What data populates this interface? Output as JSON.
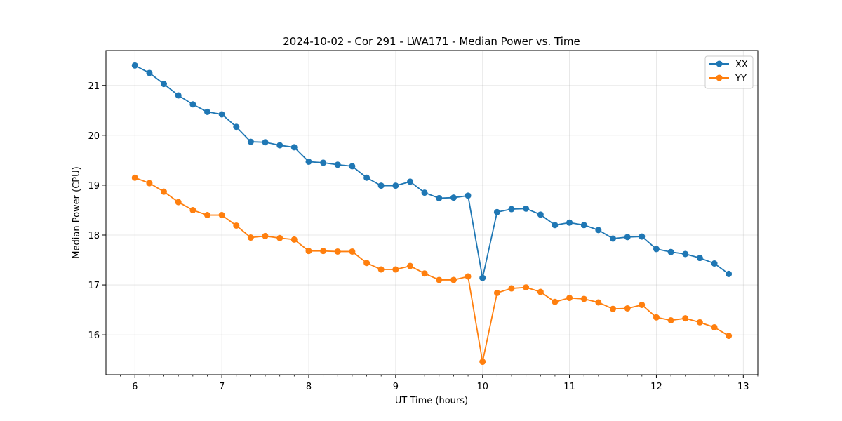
{
  "chart_data": {
    "type": "line",
    "title": "2024-10-02 - Cor 291 - LWA171 - Median Power vs. Time",
    "xlabel": "UT Time (hours)",
    "ylabel": "Median Power (CPU)",
    "xlim": [
      5.667,
      13.167
    ],
    "ylim": [
      15.2,
      21.7
    ],
    "xticks": [
      6,
      7,
      8,
      9,
      10,
      11,
      12,
      13
    ],
    "xticklabels": [
      "6",
      "7",
      "8",
      "9",
      "10",
      "11",
      "12",
      "13"
    ],
    "yticks": [
      16,
      17,
      18,
      19,
      20,
      21
    ],
    "yticklabels": [
      "16",
      "17",
      "18",
      "19",
      "20",
      "21"
    ],
    "grid": true,
    "legend_position": "top-right",
    "x": [
      6.0,
      6.167,
      6.333,
      6.5,
      6.667,
      6.833,
      7.0,
      7.167,
      7.333,
      7.5,
      7.667,
      7.833,
      8.0,
      8.167,
      8.333,
      8.5,
      8.667,
      8.833,
      9.0,
      9.167,
      9.333,
      9.5,
      9.667,
      9.833,
      10.0,
      10.167,
      10.333,
      10.5,
      10.667,
      10.833,
      11.0,
      11.167,
      11.333,
      11.5,
      11.667,
      11.833,
      12.0,
      12.167,
      12.333,
      12.5,
      12.667,
      12.833
    ],
    "series": [
      {
        "name": "XX",
        "color": "#1f77b4",
        "values": [
          21.4,
          21.25,
          21.03,
          20.8,
          20.62,
          20.47,
          20.42,
          20.17,
          19.87,
          19.86,
          19.8,
          19.76,
          19.47,
          19.45,
          19.41,
          19.38,
          19.15,
          18.99,
          18.99,
          19.07,
          18.85,
          18.74,
          18.75,
          18.79,
          17.14,
          18.46,
          18.52,
          18.53,
          18.41,
          18.2,
          18.25,
          18.2,
          18.1,
          17.93,
          17.96,
          17.97,
          17.72,
          17.66,
          17.62,
          17.54,
          17.43,
          17.22
        ]
      },
      {
        "name": "YY",
        "color": "#ff7f0e",
        "values": [
          19.15,
          19.04,
          18.87,
          18.66,
          18.5,
          18.4,
          18.4,
          18.19,
          17.95,
          17.98,
          17.94,
          17.91,
          17.68,
          17.68,
          17.67,
          17.67,
          17.44,
          17.31,
          17.31,
          17.38,
          17.23,
          17.1,
          17.1,
          17.17,
          15.46,
          16.84,
          16.93,
          16.95,
          16.86,
          16.66,
          16.74,
          16.72,
          16.65,
          16.52,
          16.53,
          16.6,
          16.35,
          16.29,
          16.33,
          16.25,
          16.15,
          15.98
        ]
      }
    ]
  }
}
